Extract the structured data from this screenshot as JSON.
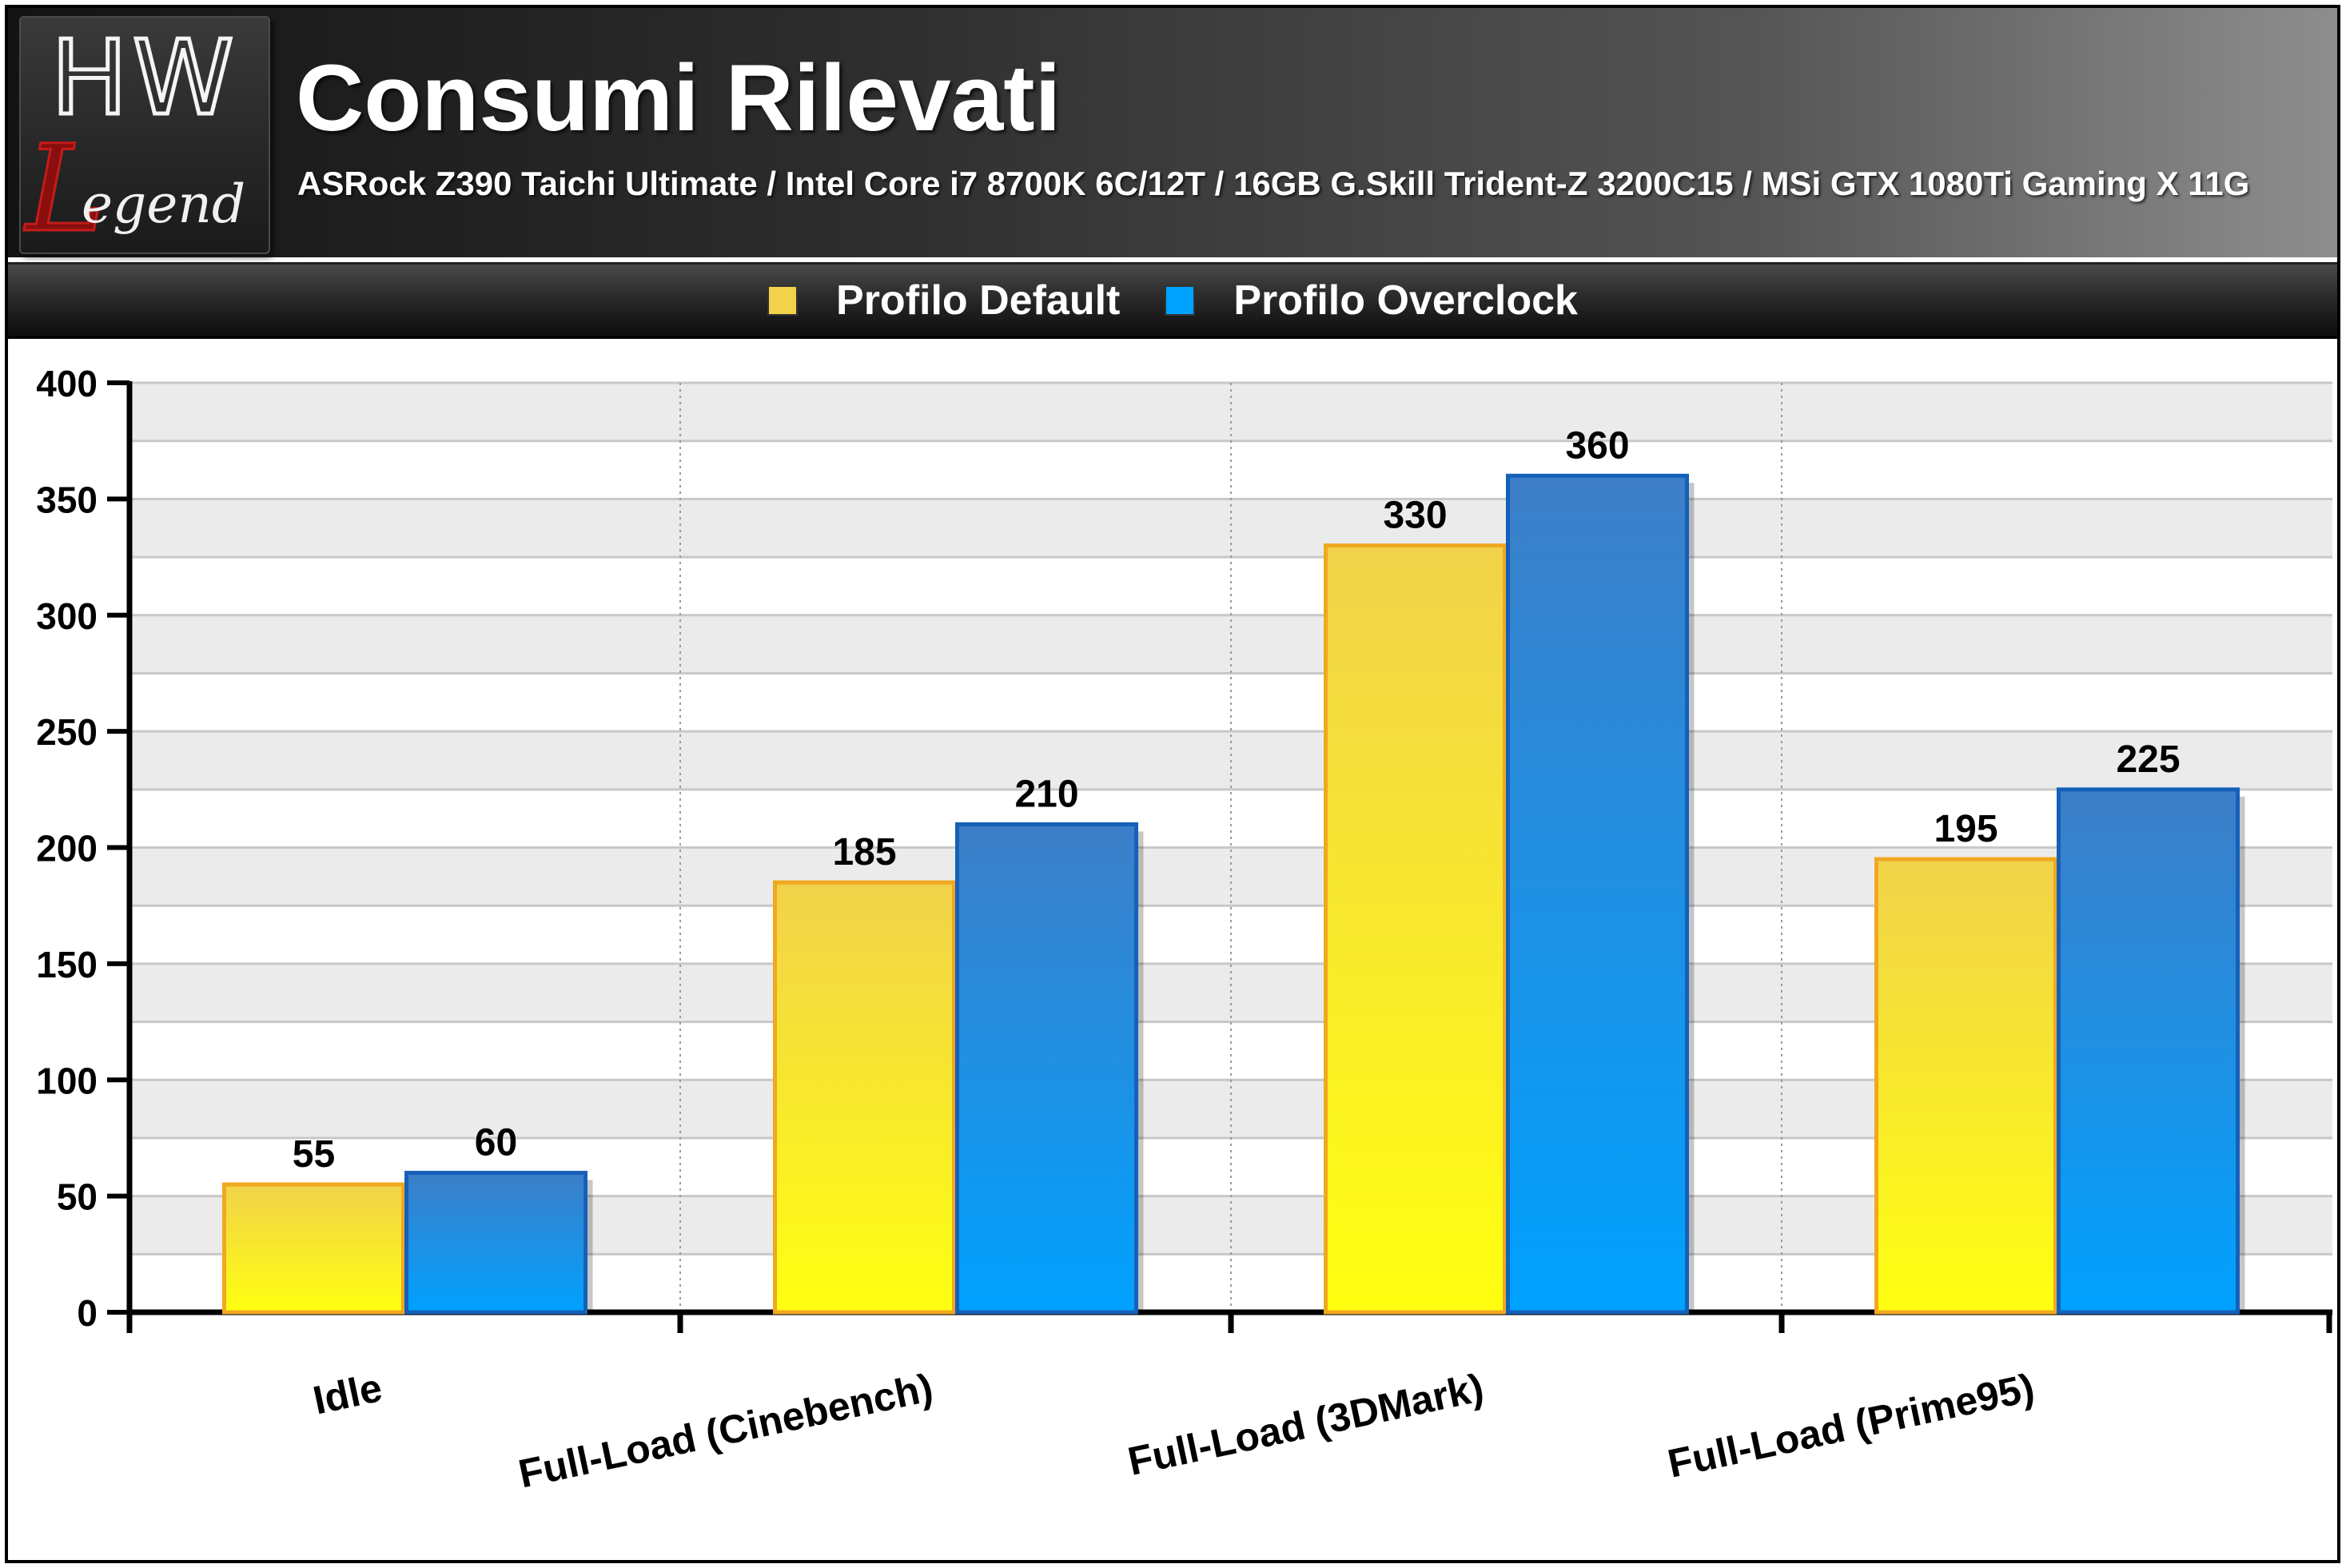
{
  "header": {
    "title": "Consumi Rilevati",
    "subtitle": "ASRock Z390 Taichi Ultimate / Intel Core i7 8700K 6C/12T / 16GB G.Skill Trident-Z 3200C15 / MSi GTX 1080Ti Gaming X 11G",
    "logo": {
      "line1": "HW",
      "line2": "egend",
      "initial": "L"
    }
  },
  "colors": {
    "default_top": "#f1d24a",
    "default_bottom": "#ffff10",
    "default_stroke": "#f0a820",
    "overclock_top": "#3d7ec7",
    "overclock_bottom": "#00a2ff",
    "overclock_stroke": "#1560b8",
    "band": "#ebebeb"
  },
  "chart_data": {
    "type": "bar",
    "title": "Consumi Rilevati",
    "subtitle": "ASRock Z390 Taichi Ultimate / Intel Core i7 8700K 6C/12T / 16GB G.Skill Trident-Z 3200C15 / MSi GTX 1080Ti Gaming X 11G",
    "categories": [
      "Idle",
      "Full-Load (Cinebench)",
      "Full-Load (3DMark)",
      "Full-Load (Prime95)"
    ],
    "series": [
      {
        "name": "Profilo Default",
        "values": [
          55,
          185,
          330,
          195
        ]
      },
      {
        "name": "Profilo Overclock",
        "values": [
          60,
          210,
          360,
          225
        ]
      }
    ],
    "xlabel": "",
    "ylabel": "",
    "ylim": [
      0,
      400
    ],
    "yticks": [
      0,
      50,
      100,
      150,
      200,
      250,
      300,
      350,
      400
    ],
    "grid": true,
    "legend": "top-center"
  }
}
